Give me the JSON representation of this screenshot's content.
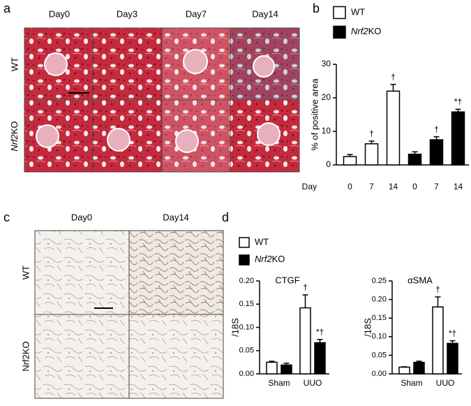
{
  "panel_labels": [
    "a",
    "b",
    "c",
    "d"
  ],
  "panel_a": {
    "columns": [
      "Day0",
      "Day3",
      "Day7",
      "Day14"
    ],
    "rows": [
      "WT",
      "Nrf2KO"
    ]
  },
  "panel_c": {
    "columns": [
      "Day0",
      "Day14"
    ],
    "rows": [
      "WT",
      "Nrf2KO"
    ]
  },
  "chart_data": [
    {
      "type": "bar",
      "ylabel": "% of positive area",
      "xlabel": "Day",
      "categories": [
        "0",
        "7",
        "14",
        "0",
        "7",
        "14"
      ],
      "ylim": [
        0,
        30
      ],
      "yticks": [
        0,
        10,
        20,
        30
      ],
      "series": [
        {
          "name": "WT",
          "color": "#ffffff",
          "values": [
            2.5,
            6.3,
            22,
            null,
            null,
            null
          ],
          "errors": [
            0.6,
            0.8,
            2,
            null,
            null,
            null
          ],
          "labels": [
            null,
            "†",
            "†",
            null,
            null,
            null
          ]
        },
        {
          "name": "Nrf2KO",
          "color": "#000000",
          "values": [
            null,
            null,
            null,
            3.2,
            7.5,
            15.8
          ],
          "errors": [
            null,
            null,
            null,
            0.7,
            0.9,
            0.8
          ],
          "labels": [
            null,
            null,
            null,
            null,
            "†",
            "*†"
          ]
        }
      ]
    },
    {
      "type": "bar",
      "subtitle": "CTGF",
      "ylabel": "/18S",
      "categories": [
        "Sham",
        "UUO"
      ],
      "ylim": [
        0,
        0.2
      ],
      "yticks": [
        {
          "value": 0,
          "label": "0.00"
        },
        {
          "value": 0.05,
          "label": "0.05"
        },
        {
          "value": 0.1,
          "label": "0.10"
        },
        {
          "value": 0.15,
          "label": "0.15"
        },
        {
          "value": 0.2,
          "label": "0.20"
        }
      ],
      "series": [
        {
          "name": "WT",
          "color": "#ffffff",
          "values": [
            0.025,
            0.142
          ],
          "errors": [
            0.002,
            0.028
          ],
          "labels": [
            null,
            "†"
          ]
        },
        {
          "name": "Nrf2KO",
          "color": "#000000",
          "values": [
            0.019,
            0.067
          ],
          "errors": [
            0.004,
            0.007
          ],
          "labels": [
            null,
            "*†"
          ]
        }
      ]
    },
    {
      "type": "bar",
      "subtitle": "αSMA",
      "ylabel": "/18S",
      "categories": [
        "Sham",
        "UUO"
      ],
      "ylim": [
        0,
        0.25
      ],
      "yticks": [
        {
          "value": 0,
          "label": "0.00"
        },
        {
          "value": 0.05,
          "label": "0.05"
        },
        {
          "value": 0.1,
          "label": "0.10"
        },
        {
          "value": 0.15,
          "label": "0.15"
        },
        {
          "value": 0.2,
          "label": "0.20"
        },
        {
          "value": 0.25,
          "label": "0.25"
        }
      ],
      "series": [
        {
          "color": "#ffffff",
          "values": [
            0.018,
            0.18
          ],
          "errors": [
            0.001,
            0.027
          ],
          "labels": [
            null,
            "†"
          ]
        },
        {
          "color": "#000000",
          "values": [
            0.031,
            0.082
          ],
          "errors": [
            0.003,
            0.007
          ],
          "labels": [
            null,
            "*†"
          ]
        }
      ]
    }
  ]
}
